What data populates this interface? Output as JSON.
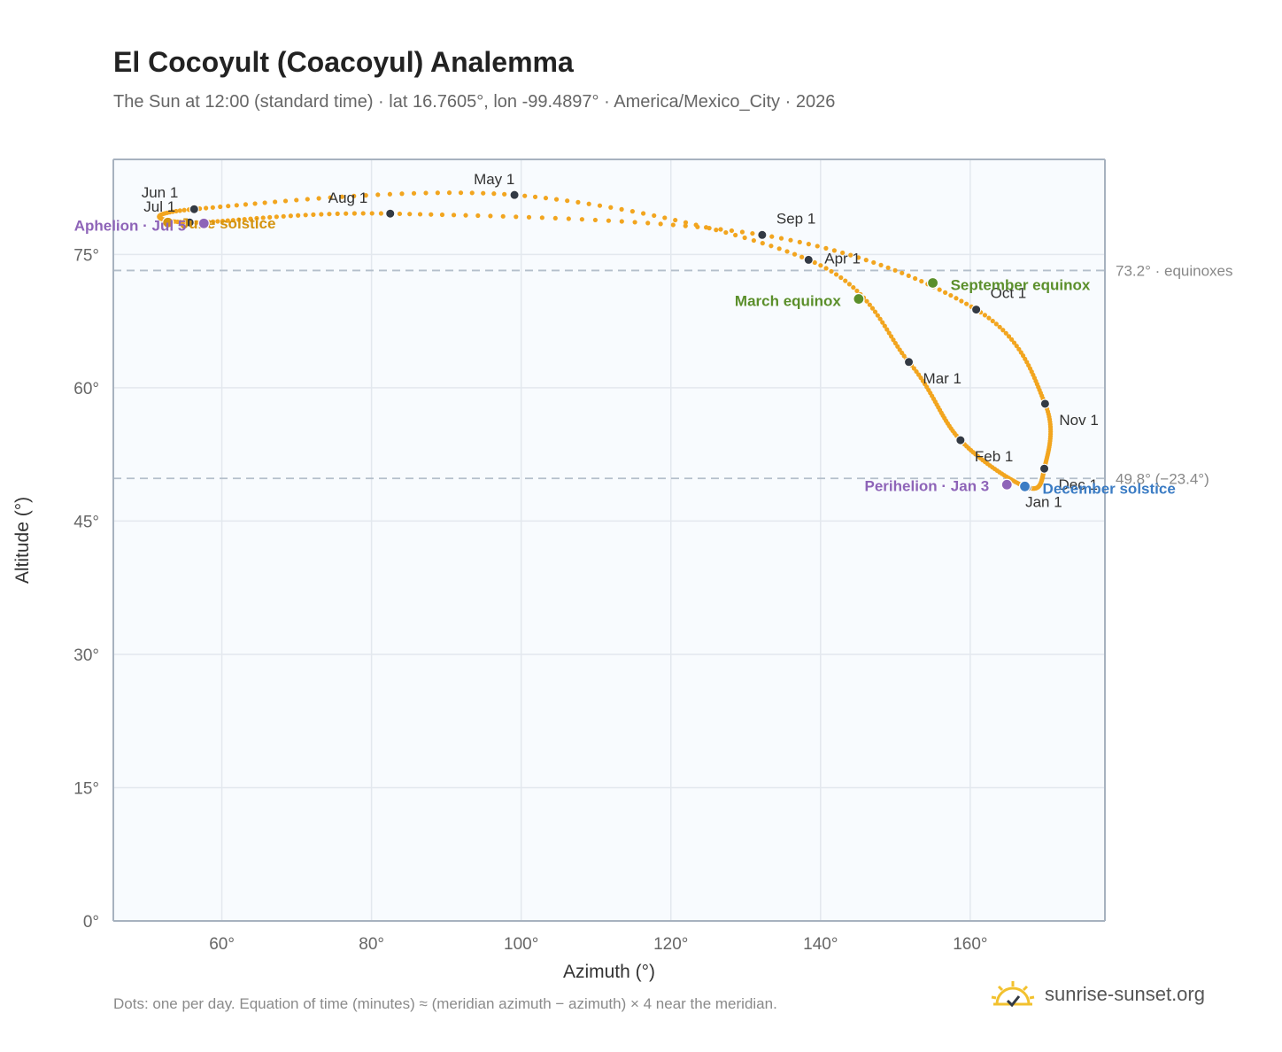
{
  "header": {
    "title": "El Cocoyult (Coacoyul) Analemma",
    "subtitle": "The Sun at 12:00 (standard time) · lat 16.7605°, lon -99.4897° · America/Mexico_City · 2026"
  },
  "footer": {
    "note": "Dots: one per day. Equation of time (minutes) ≈ (meridian azimuth − azimuth) × 4 near the meridian.",
    "brand": "sunrise-sunset.org"
  },
  "icons": {
    "brand_logo": "sun-checkmark-icon"
  },
  "colors": {
    "path": "#f2a51f",
    "month_marker": "#333a44",
    "equinox": "#5b8f2b",
    "solstice_june": "#d4930e",
    "solstice_december": "#3b7cc4",
    "apsis": "#8e64b8",
    "plot_background": "#f8fbfe",
    "grid": "#e3e8ee",
    "reference_line": "#b4bfcb"
  },
  "chart_data": {
    "type": "scatter",
    "xlabel": "Azimuth (°)",
    "ylabel": "Altitude (°)",
    "xlim": [
      45.5,
      178
    ],
    "ylim": [
      0,
      85.7
    ],
    "x_ticks": [
      60,
      80,
      100,
      120,
      140,
      160
    ],
    "x_tick_labels": [
      "60°",
      "80°",
      "100°",
      "120°",
      "140°",
      "160°"
    ],
    "y_ticks": [
      0,
      15,
      30,
      45,
      60,
      75
    ],
    "y_tick_labels": [
      "0°",
      "15°",
      "30°",
      "45°",
      "60°",
      "75°"
    ],
    "grid": true,
    "reference_lines": [
      {
        "altitude": 73.2,
        "label": "73.2° · equinoxes"
      },
      {
        "altitude": 49.8,
        "label": "49.8° (−23.4°)"
      }
    ],
    "months": [
      {
        "label": "Jan 1",
        "az": 167.6,
        "alt": 48.8
      },
      {
        "label": "Feb 1",
        "az": 158.7,
        "alt": 54.1
      },
      {
        "label": "Mar 1",
        "az": 151.8,
        "alt": 62.9
      },
      {
        "label": "Apr 1",
        "az": 138.4,
        "alt": 74.4
      },
      {
        "label": "May 1",
        "az": 99.1,
        "alt": 81.7
      },
      {
        "label": "Jun 1",
        "az": 56.3,
        "alt": 80.1
      },
      {
        "label": "Jul 1",
        "az": 55.7,
        "alt": 78.6
      },
      {
        "label": "Aug 1",
        "az": 82.5,
        "alt": 79.6
      },
      {
        "label": "Sep 1",
        "az": 132.2,
        "alt": 77.2
      },
      {
        "label": "Oct 1",
        "az": 160.8,
        "alt": 68.8
      },
      {
        "label": "Nov 1",
        "az": 170.0,
        "alt": 58.2
      },
      {
        "label": "Dec 1",
        "az": 169.9,
        "alt": 50.9
      }
    ],
    "events": [
      {
        "label": "March equinox",
        "az": 145.1,
        "alt": 70.0,
        "role": "equinox"
      },
      {
        "label": "June solstice",
        "az": 52.8,
        "alt": 78.6,
        "role": "solstice_june"
      },
      {
        "label": "September equinox",
        "az": 155.0,
        "alt": 71.8,
        "role": "equinox"
      },
      {
        "label": "December solstice",
        "az": 167.3,
        "alt": 48.9,
        "role": "solstice_december"
      },
      {
        "label": "Perihelion · Jan 3",
        "az": 164.9,
        "alt": 49.1,
        "role": "apsis"
      },
      {
        "label": "Aphelion · Jul 5",
        "az": 57.6,
        "alt": 78.5,
        "role": "apsis"
      }
    ]
  }
}
